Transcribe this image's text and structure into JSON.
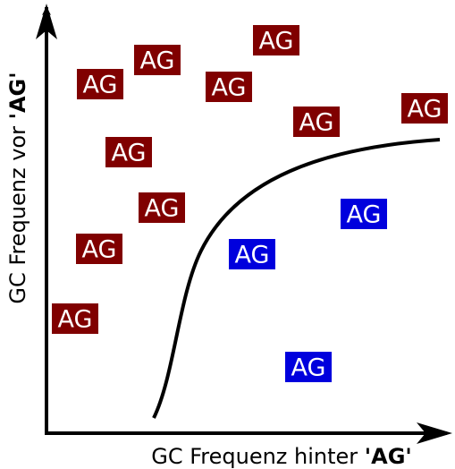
{
  "axes": {
    "x_label": {
      "text": "GC Frequenz hinter ",
      "emphasis": "'AG'"
    },
    "y_label": {
      "text": "GC Frequenz vor ",
      "emphasis": "'AG'"
    }
  },
  "nodes": [
    {
      "label": "AG"
    },
    {
      "label": "AG"
    },
    {
      "label": "AG"
    },
    {
      "label": "AG"
    },
    {
      "label": "AG"
    },
    {
      "label": "AG"
    },
    {
      "label": "AG"
    },
    {
      "label": "AG"
    },
    {
      "label": "AG"
    },
    {
      "label": "AG"
    },
    {
      "label": "AG"
    },
    {
      "label": "AG"
    },
    {
      "label": "AG"
    }
  ]
}
